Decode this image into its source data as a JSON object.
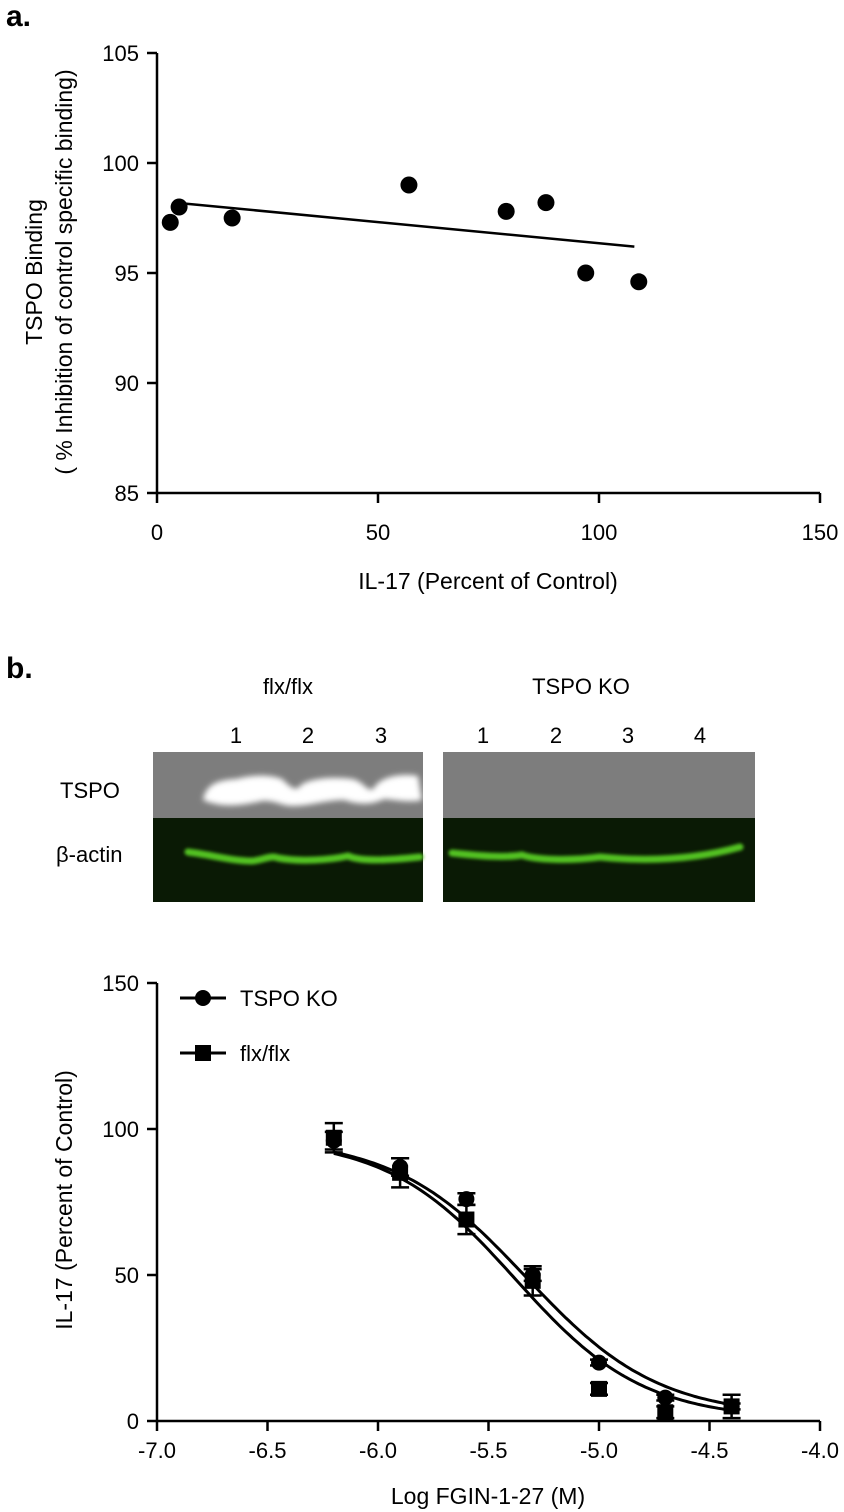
{
  "panel_a_label": "a.",
  "panel_b_label": "b.",
  "blot": {
    "group_labels": [
      "flx/flx",
      "TSPO KO"
    ],
    "lanes_flx": [
      "1",
      "2",
      "3"
    ],
    "lanes_ko": [
      "1",
      "2",
      "3",
      "4"
    ],
    "row_labels": [
      "TSPO",
      "β-actin"
    ],
    "band_colors": {
      "tspo_background": "#7d7d7d",
      "tspo_band": "#ffffff",
      "actin_background": "#0a1a05",
      "actin_band": "#52c222"
    }
  },
  "chart_data": [
    {
      "type": "scatter",
      "title": "",
      "xlabel": "IL-17 (Percent of Control)",
      "ylabel_line1": "TSPO Binding",
      "ylabel_line2": "( % Inhibition of control specific binding)",
      "xlim": [
        0,
        150
      ],
      "ylim": [
        85,
        105
      ],
      "xticks": [
        0,
        50,
        100,
        150
      ],
      "yticks": [
        85,
        90,
        95,
        100,
        105
      ],
      "grid": false,
      "points": [
        {
          "x": 3,
          "y": 97.3
        },
        {
          "x": 5,
          "y": 98.0
        },
        {
          "x": 17,
          "y": 97.5
        },
        {
          "x": 57,
          "y": 99.0
        },
        {
          "x": 79,
          "y": 97.8
        },
        {
          "x": 88,
          "y": 98.2
        },
        {
          "x": 97,
          "y": 95.0
        },
        {
          "x": 109,
          "y": 94.6
        }
      ],
      "trendline": {
        "x": [
          4,
          108
        ],
        "y": [
          98.2,
          96.2
        ]
      },
      "marker_color": "#000000"
    },
    {
      "type": "line",
      "title": "",
      "xlabel": "Log FGIN-1-27 (M)",
      "ylabel": "IL-17 (Percent of Control)",
      "xlim": [
        -7.0,
        -4.0
      ],
      "ylim": [
        0,
        150
      ],
      "xticks": [
        -7.0,
        -6.5,
        -6.0,
        -5.5,
        -5.0,
        -4.5,
        -4.0
      ],
      "yticks": [
        0,
        50,
        100,
        150
      ],
      "grid": false,
      "legend_placement": "top-left",
      "series": [
        {
          "name": "TSPO KO",
          "marker": "circle",
          "x": [
            -6.2,
            -5.9,
            -5.6,
            -5.3,
            -5.0,
            -4.7,
            -4.4
          ],
          "y": [
            96,
            87,
            76,
            50,
            20,
            8,
            5
          ],
          "error": [
            3,
            3,
            2,
            2,
            1,
            1,
            1
          ],
          "fit": {
            "top": 97,
            "bottom": 1.5,
            "logIC50": -5.33,
            "hill": -1.45
          }
        },
        {
          "name": "flx/flx",
          "marker": "square",
          "x": [
            -6.2,
            -5.9,
            -5.6,
            -5.3,
            -5.0,
            -4.7,
            -4.4
          ],
          "y": [
            97,
            85,
            69,
            48,
            11,
            3,
            5
          ],
          "error": [
            5,
            5,
            5,
            5,
            2,
            2,
            4
          ],
          "fit": {
            "top": 97,
            "bottom": 0.5,
            "logIC50": -5.38,
            "hill": -1.5
          }
        }
      ]
    }
  ]
}
